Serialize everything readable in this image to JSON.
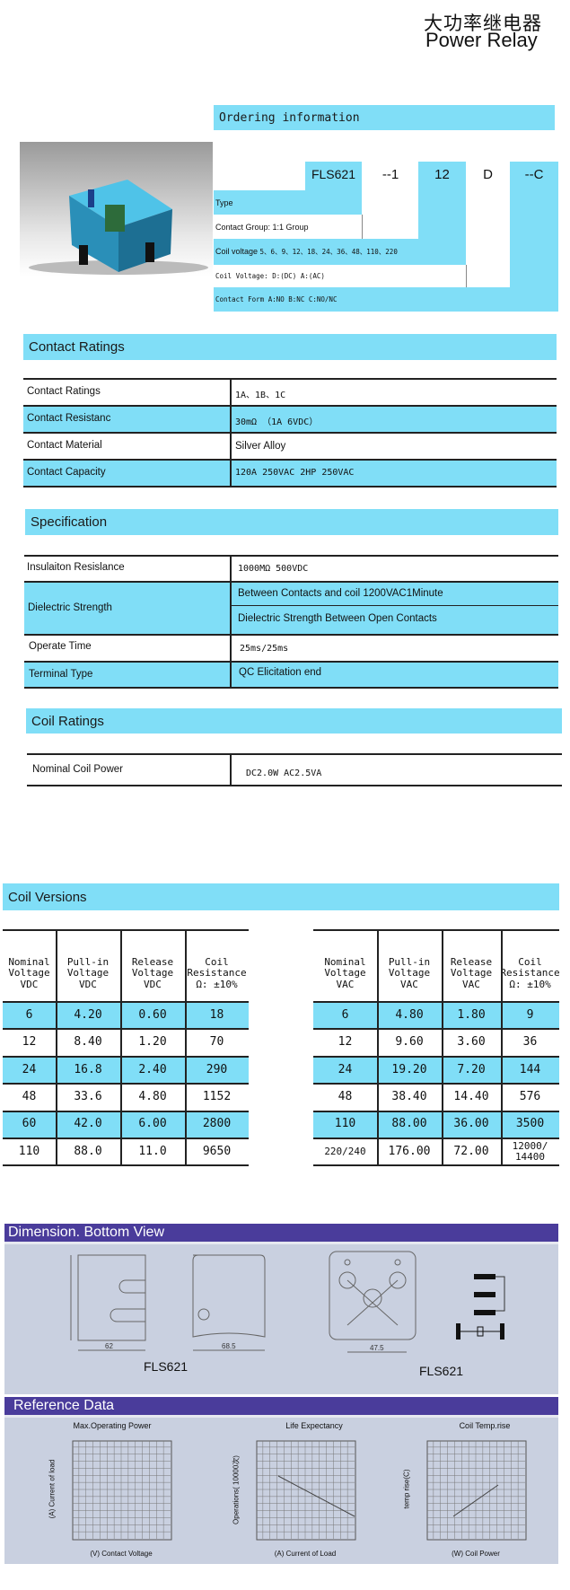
{
  "title": {
    "chinese": "大功率继电器",
    "english": "Power Relay"
  },
  "ordering": {
    "header": "Ordering information",
    "codes": {
      "type": "FLS621",
      "group": "--1",
      "voltage": "12",
      "kind": "D",
      "form": "--C"
    },
    "rows": {
      "type": "Type",
      "contact_group": "Contact Group: 1:1 Group",
      "coil_voltage_label": "Coil voltage",
      "coil_voltage_values": "5、6、9、12、18、24、36、48、110、220",
      "coil_kind": "Coil Voltage: D:(DC)  A:(AC)",
      "contact_form": "Contact Form   A:NO  B:NC  C:NO/NC"
    }
  },
  "contact_ratings": {
    "header": "Contact  Ratings",
    "rows": [
      {
        "label": "Contact Ratings",
        "value": "1A、1B、1C"
      },
      {
        "label": "Contact Resistanc",
        "value": "30mΩ （1A 6VDC）"
      },
      {
        "label": "Contact Material",
        "value": "Silver Alloy"
      },
      {
        "label": "Contact Capacity",
        "value": "120A 250VAC 2HP 250VAC"
      }
    ]
  },
  "specification": {
    "header": "Specification",
    "insulation": {
      "label": "Insulaiton Resislance",
      "value": "1000MΩ  500VDC"
    },
    "dielectric": {
      "label": "Dielectric Strength",
      "value1": "Between Contacts and coil  1200VAC1Minute",
      "value2": "Dielectric Strength Between Open Contacts"
    },
    "operate": {
      "label": "Operate Time",
      "value": "25ms/25ms"
    },
    "terminal": {
      "label": "Terminal Type",
      "value": "QC Elicitation end"
    }
  },
  "coil_ratings": {
    "header": "Coil Ratings",
    "label": "Nominal Coil Power",
    "value": "DC2.0W  AC2.5VA"
  },
  "coil_versions": {
    "header": "Coil Versions",
    "dc": {
      "headers": [
        "Nominal\nVoltage\nVDC",
        "Pull-in\nVoltage\nVDC",
        "Release\nVoltage\nVDC",
        "Coil\nResistance\nΩ: ±10%"
      ],
      "rows": [
        [
          "6",
          "4.20",
          "0.60",
          "18"
        ],
        [
          "12",
          "8.40",
          "1.20",
          "70"
        ],
        [
          "24",
          "16.8",
          "2.40",
          "290"
        ],
        [
          "48",
          "33.6",
          "4.80",
          "1152"
        ],
        [
          "60",
          "42.0",
          "6.00",
          "2800"
        ],
        [
          "110",
          "88.0",
          "11.0",
          "9650"
        ]
      ]
    },
    "ac": {
      "headers": [
        "Nominal\nVoltage\nVAC",
        "Pull-in\nVoltage\nVAC",
        "Release\nVoltage\nVAC",
        "Coil\nResistance\nΩ: ±10%"
      ],
      "rows": [
        [
          "6",
          "4.80",
          "1.80",
          "9"
        ],
        [
          "12",
          "9.60",
          "3.60",
          "36"
        ],
        [
          "24",
          "19.20",
          "7.20",
          "144"
        ],
        [
          "48",
          "38.40",
          "14.40",
          "576"
        ],
        [
          "110",
          "88.00",
          "36.00",
          "3500"
        ],
        [
          "220/240",
          "176.00",
          "72.00",
          "12000/\n14400"
        ]
      ]
    }
  },
  "dimension": {
    "header": "Dimension. Bottom View",
    "model_left": "FLS621",
    "model_right": "FLS621",
    "dim_width": "62",
    "dim_depth": "68.5",
    "dim_pitch": "47.5"
  },
  "reference": {
    "header": "Reference Data",
    "charts": [
      {
        "title": "Max.Operating Power",
        "ylabel": "(A) Current of load",
        "xlabel": "(V) Contact Voltage"
      },
      {
        "title": "Life Expectancy",
        "ylabel": "Operations( 10000次)",
        "xlabel": "(A) Current of Load"
      },
      {
        "title": "Coil Temp.rise",
        "ylabel": "temp rise(C)",
        "xlabel": "(W) Coil Power"
      }
    ]
  },
  "colors": {
    "section_blue": "#80def7",
    "banner_purple": "#4a3c9b",
    "panel_grey": "#c9d0e0"
  }
}
